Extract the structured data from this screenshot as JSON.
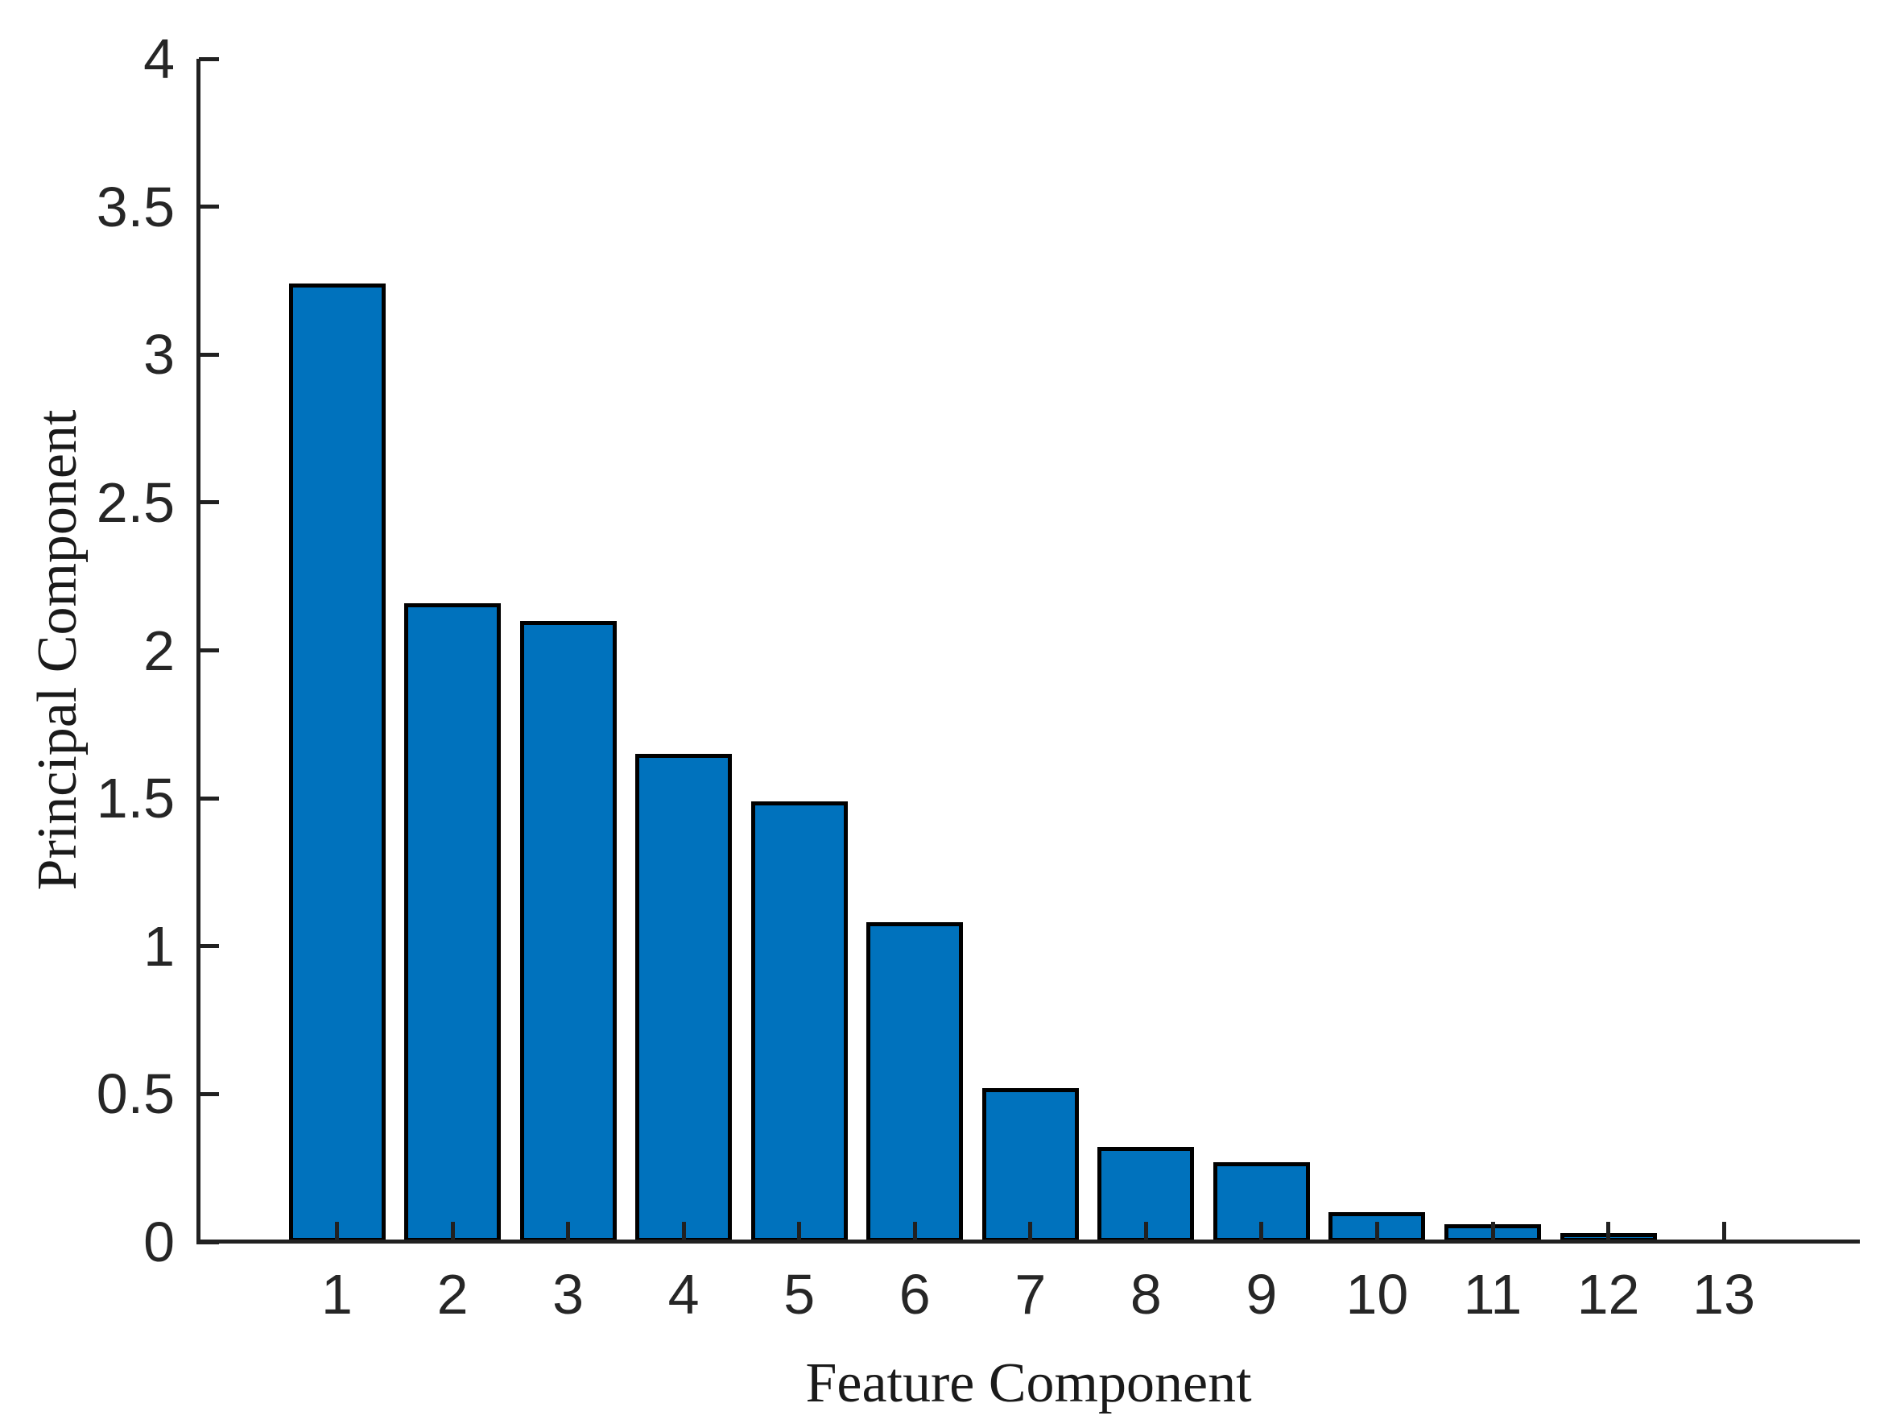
{
  "figure": {
    "background_color": "#ffffff"
  },
  "chart_data": {
    "type": "bar",
    "title": "",
    "xlabel": "Feature Component",
    "ylabel": "Principal Component",
    "categories": [
      "1",
      "2",
      "3",
      "4",
      "5",
      "6",
      "7",
      "8",
      "9",
      "10",
      "11",
      "12",
      "13"
    ],
    "values": [
      3.24,
      2.16,
      2.1,
      1.65,
      1.49,
      1.08,
      0.52,
      0.32,
      0.27,
      0.1,
      0.06,
      0.03,
      0.005
    ],
    "ylim": [
      0,
      4
    ],
    "ytick_values": [
      0,
      0.5,
      1,
      1.5,
      2,
      2.5,
      3,
      3.5,
      4
    ],
    "ytick_labels": [
      "0",
      "0.5",
      "1",
      "1.5",
      "2",
      "2.5",
      "3",
      "3.5",
      "4"
    ],
    "grid": false,
    "legend": false,
    "tick_direction": "in",
    "bar_fill_color": "#0072BD",
    "bar_edge_color": "#000000",
    "axis_color": "#212121",
    "tick_label_color": "#262626"
  }
}
